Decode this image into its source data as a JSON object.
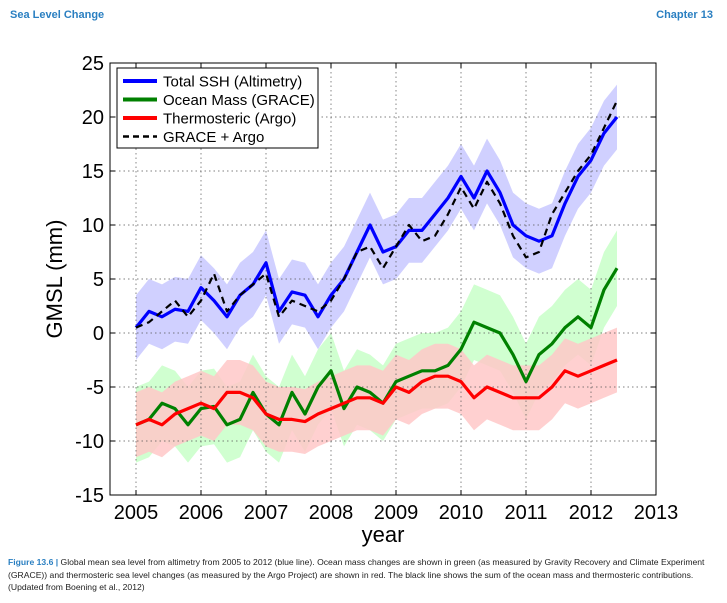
{
  "header": {
    "left": "Sea Level Change",
    "right": "Chapter 13"
  },
  "caption": {
    "label": "Figure 13.6 |",
    "text": " Global mean sea level from altimetry from 2005 to 2012 (blue line). Ocean mass changes are shown in green (as measured by Gravity Recovery and Climate Experiment (GRACE)) and thermosteric sea level changes (as measured by the Argo Project) are shown in red. The black line shows the sum of the ocean mass and thermosteric contributions. (Updated from Boening et al., 2012)"
  },
  "colors": {
    "ssh": "#0000ff",
    "ssh_band": "#c8c8ff",
    "mass": "#008000",
    "mass_band": "#c8ffc8",
    "thermo": "#ff0000",
    "thermo_band": "#ffc8c8",
    "sum": "#000000"
  },
  "chart_data": {
    "type": "line",
    "xlabel": "year",
    "ylabel": "GMSL (mm)",
    "xlim": [
      2004.6,
      2013
    ],
    "ylim": [
      -15,
      25
    ],
    "xticks": [
      2005,
      2006,
      2007,
      2008,
      2009,
      2010,
      2011,
      2012,
      2013
    ],
    "yticks": [
      -15,
      -10,
      -5,
      0,
      5,
      10,
      15,
      20,
      25
    ],
    "grid": true,
    "legend_position": "top-left",
    "x": [
      2005.0,
      2005.2,
      2005.4,
      2005.6,
      2005.8,
      2006.0,
      2006.2,
      2006.4,
      2006.6,
      2006.8,
      2007.0,
      2007.2,
      2007.4,
      2007.6,
      2007.8,
      2008.0,
      2008.2,
      2008.4,
      2008.6,
      2008.8,
      2009.0,
      2009.2,
      2009.4,
      2009.6,
      2009.8,
      2010.0,
      2010.2,
      2010.4,
      2010.6,
      2010.8,
      2011.0,
      2011.2,
      2011.4,
      2011.6,
      2011.8,
      2012.0,
      2012.2,
      2012.4
    ],
    "series": [
      {
        "name": "Total SSH (Altimetry)",
        "values": [
          0.5,
          2.0,
          1.5,
          2.2,
          2.0,
          4.2,
          3.0,
          1.5,
          3.5,
          4.5,
          6.5,
          2.0,
          3.8,
          3.5,
          1.5,
          3.5,
          5.0,
          7.5,
          10.0,
          7.5,
          8.0,
          9.5,
          9.5,
          11.0,
          12.5,
          14.5,
          12.5,
          15.0,
          13.0,
          10.0,
          9.0,
          8.5,
          9.0,
          12.0,
          14.5,
          16.0,
          18.5,
          20.0
        ],
        "band_half_width": 3.0,
        "style": "solid"
      },
      {
        "name": "Ocean Mass (GRACE)",
        "values": [
          -8.5,
          -8.0,
          -6.5,
          -7.0,
          -8.5,
          -7.0,
          -6.8,
          -8.5,
          -8.0,
          -5.5,
          -7.5,
          -8.5,
          -5.5,
          -7.5,
          -5.0,
          -3.5,
          -7.0,
          -5.0,
          -5.5,
          -6.5,
          -4.5,
          -4.0,
          -3.5,
          -3.5,
          -3.0,
          -1.5,
          1.0,
          0.5,
          0.0,
          -2.0,
          -4.5,
          -2.0,
          -1.0,
          0.5,
          1.5,
          0.5,
          4.0,
          6.0
        ],
        "band_half_width": 3.5,
        "style": "solid"
      },
      {
        "name": "Thermosteric (Argo)",
        "values": [
          -8.5,
          -8.0,
          -8.5,
          -7.5,
          -7.0,
          -6.5,
          -7.0,
          -5.5,
          -5.5,
          -6.0,
          -7.5,
          -8.0,
          -8.0,
          -8.2,
          -7.5,
          -7.0,
          -6.5,
          -6.0,
          -6.0,
          -6.5,
          -5.0,
          -5.5,
          -4.5,
          -4.0,
          -4.0,
          -4.5,
          -6.0,
          -5.0,
          -5.5,
          -6.0,
          -6.0,
          -6.0,
          -5.0,
          -3.5,
          -4.0,
          -3.5,
          -3.0,
          -2.5
        ],
        "band_half_width": 3.0,
        "style": "solid"
      },
      {
        "name": "GRACE + Argo",
        "values": [
          0.5,
          1.0,
          2.0,
          3.0,
          1.5,
          3.0,
          5.5,
          2.0,
          3.5,
          4.5,
          5.5,
          1.5,
          3.0,
          2.5,
          2.0,
          3.0,
          5.0,
          7.5,
          8.0,
          6.0,
          8.0,
          10.0,
          8.5,
          9.0,
          11.0,
          13.5,
          11.5,
          14.0,
          12.0,
          9.0,
          7.0,
          7.5,
          11.0,
          13.0,
          15.0,
          16.5,
          19.0,
          21.5
        ],
        "style": "dashed"
      }
    ]
  }
}
